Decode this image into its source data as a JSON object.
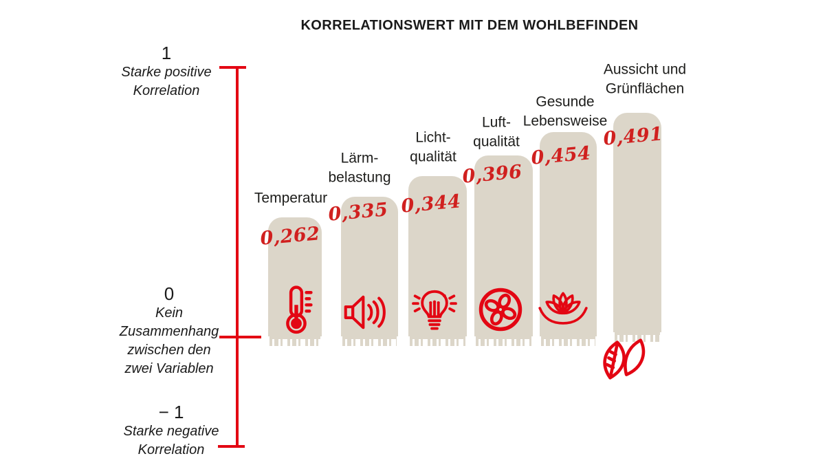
{
  "colors": {
    "accent_red": "#e30613",
    "value_red": "#d0201f",
    "bar_beige": "#dcd6c9",
    "text": "#1d1d1b",
    "background": "#ffffff"
  },
  "title": "KORRELATIONSWERT MIT DEM WOHLBEFINDEN",
  "axis": {
    "ticks": [
      {
        "value": "1",
        "description": "Starke positive\nKorrelation"
      },
      {
        "value": "0",
        "description": "Kein\nZusammenhang\nzwischen den\nzwei Variablen"
      },
      {
        "value": "− 1",
        "description": "Starke negative\nKorrelation"
      }
    ]
  },
  "chart_data": {
    "type": "bar",
    "title": "KORRELATIONSWERT MIT DEM WOHLBEFINDEN",
    "categories": [
      "Temperatur",
      "Lärmbelastung",
      "Lichtqualität",
      "Luftqualität",
      "Gesunde Lebensweise",
      "Aussicht und Grünflächen"
    ],
    "values": [
      0.262,
      0.335,
      0.344,
      0.396,
      0.454,
      0.491
    ],
    "value_labels": [
      "0,262",
      "0,335",
      "0,344",
      "0,396",
      "0,454",
      "0,491"
    ],
    "ylim": [
      -1,
      1
    ],
    "y_tick_annotations": [
      {
        "tick": 1,
        "text": "Starke positive Korrelation"
      },
      {
        "tick": 0,
        "text": "Kein Zusammenhang zwischen den zwei Variablen"
      },
      {
        "tick": -1,
        "text": "Starke negative Korrelation"
      }
    ],
    "grid": false,
    "legend": false,
    "bars": [
      {
        "category": "Temperatur",
        "label_display": "Temperatur",
        "value": 0.262,
        "value_label": "0,262",
        "icon": "thermometer-icon"
      },
      {
        "category": "Lärmbelastung",
        "label_display": "Lärm-\nbelastung",
        "value": 0.335,
        "value_label": "0,335",
        "icon": "speaker-icon"
      },
      {
        "category": "Lichtqualität",
        "label_display": "Licht-\nqualität",
        "value": 0.344,
        "value_label": "0,344",
        "icon": "lightbulb-icon"
      },
      {
        "category": "Luftqualität",
        "label_display": "Luft-\nqualität",
        "value": 0.396,
        "value_label": "0,396",
        "icon": "fan-icon"
      },
      {
        "category": "Gesunde Lebensweise",
        "label_display": "Gesunde\nLebensweise",
        "value": 0.454,
        "value_label": "0,454",
        "icon": "lotus-icon"
      },
      {
        "category": "Aussicht und Grünflächen",
        "label_display": "Aussicht und\nGrünflächen",
        "value": 0.491,
        "value_label": "0,491",
        "icon": "leaves-icon"
      }
    ]
  }
}
